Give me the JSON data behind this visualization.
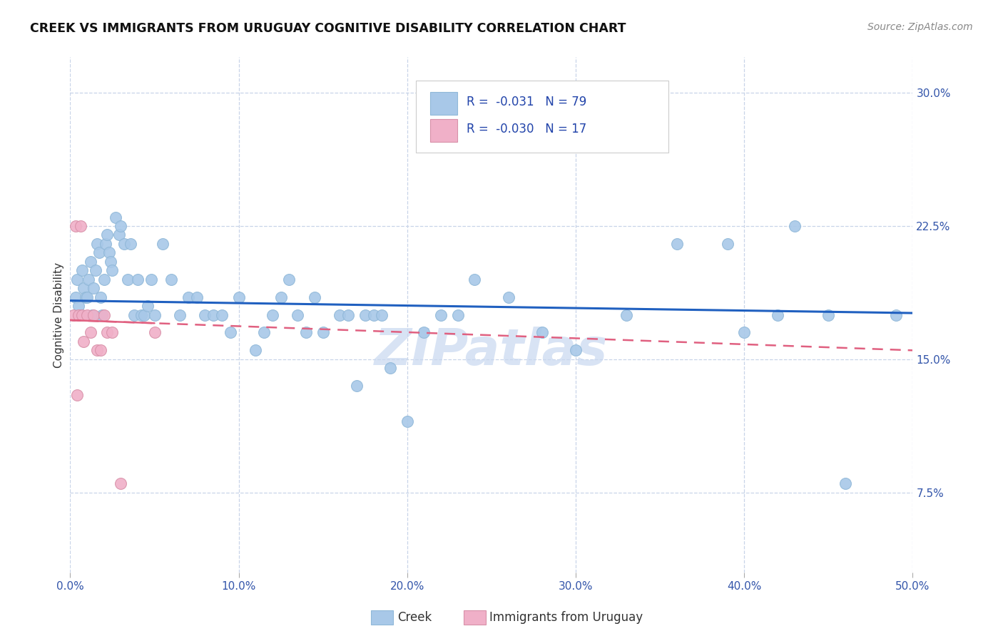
{
  "title": "CREEK VS IMMIGRANTS FROM URUGUAY COGNITIVE DISABILITY CORRELATION CHART",
  "source": "Source: ZipAtlas.com",
  "ylabel": "Cognitive Disability",
  "xlim": [
    0.0,
    0.5
  ],
  "ylim": [
    0.03,
    0.32
  ],
  "xticks": [
    0.0,
    0.1,
    0.2,
    0.3,
    0.4,
    0.5
  ],
  "ytick_vals": [
    0.075,
    0.15,
    0.225,
    0.3
  ],
  "ytick_labels": [
    "7.5%",
    "15.0%",
    "22.5%",
    "30.0%"
  ],
  "xtick_labels": [
    "0.0%",
    "10.0%",
    "20.0%",
    "30.0%",
    "40.0%",
    "50.0%"
  ],
  "creek_color": "#a8c8e8",
  "uruguay_color": "#f0b0c8",
  "creek_line_color": "#2060c0",
  "uruguay_line_color": "#e06080",
  "background_color": "#ffffff",
  "grid_color": "#c8d4e8",
  "creek_points_x": [
    0.003,
    0.004,
    0.005,
    0.006,
    0.007,
    0.008,
    0.009,
    0.01,
    0.011,
    0.012,
    0.013,
    0.014,
    0.015,
    0.016,
    0.017,
    0.018,
    0.019,
    0.02,
    0.021,
    0.022,
    0.023,
    0.024,
    0.025,
    0.027,
    0.029,
    0.03,
    0.032,
    0.034,
    0.036,
    0.038,
    0.04,
    0.042,
    0.044,
    0.046,
    0.048,
    0.05,
    0.055,
    0.06,
    0.065,
    0.07,
    0.075,
    0.08,
    0.085,
    0.09,
    0.095,
    0.1,
    0.11,
    0.115,
    0.12,
    0.125,
    0.13,
    0.135,
    0.14,
    0.145,
    0.15,
    0.16,
    0.165,
    0.17,
    0.175,
    0.18,
    0.185,
    0.19,
    0.2,
    0.21,
    0.22,
    0.23,
    0.24,
    0.26,
    0.28,
    0.3,
    0.33,
    0.36,
    0.39,
    0.4,
    0.42,
    0.43,
    0.45,
    0.46,
    0.49
  ],
  "creek_points_y": [
    0.185,
    0.195,
    0.18,
    0.175,
    0.2,
    0.19,
    0.185,
    0.185,
    0.195,
    0.205,
    0.175,
    0.19,
    0.2,
    0.215,
    0.21,
    0.185,
    0.175,
    0.195,
    0.215,
    0.22,
    0.21,
    0.205,
    0.2,
    0.23,
    0.22,
    0.225,
    0.215,
    0.195,
    0.215,
    0.175,
    0.195,
    0.175,
    0.175,
    0.18,
    0.195,
    0.175,
    0.215,
    0.195,
    0.175,
    0.185,
    0.185,
    0.175,
    0.175,
    0.175,
    0.165,
    0.185,
    0.155,
    0.165,
    0.175,
    0.185,
    0.195,
    0.175,
    0.165,
    0.185,
    0.165,
    0.175,
    0.175,
    0.135,
    0.175,
    0.175,
    0.175,
    0.145,
    0.115,
    0.165,
    0.175,
    0.175,
    0.195,
    0.185,
    0.165,
    0.155,
    0.175,
    0.215,
    0.215,
    0.165,
    0.175,
    0.225,
    0.175,
    0.08,
    0.175
  ],
  "uruguay_points_x": [
    0.002,
    0.003,
    0.004,
    0.005,
    0.006,
    0.007,
    0.008,
    0.01,
    0.012,
    0.014,
    0.016,
    0.018,
    0.02,
    0.022,
    0.025,
    0.03,
    0.05
  ],
  "uruguay_points_y": [
    0.175,
    0.225,
    0.13,
    0.175,
    0.225,
    0.175,
    0.16,
    0.175,
    0.165,
    0.175,
    0.155,
    0.155,
    0.175,
    0.165,
    0.165,
    0.08,
    0.165
  ],
  "creek_trend_x": [
    0.0,
    0.5
  ],
  "creek_trend_y": [
    0.183,
    0.176
  ],
  "uruguay_trend_x": [
    0.0,
    0.5
  ],
  "uruguay_trend_y": [
    0.172,
    0.155
  ],
  "watermark": "ZIPatlas",
  "watermark_color": "#c8d8f0",
  "legend_creek_text": "R =  -0.031   N = 79",
  "legend_uru_text": "R =  -0.030   N = 17"
}
